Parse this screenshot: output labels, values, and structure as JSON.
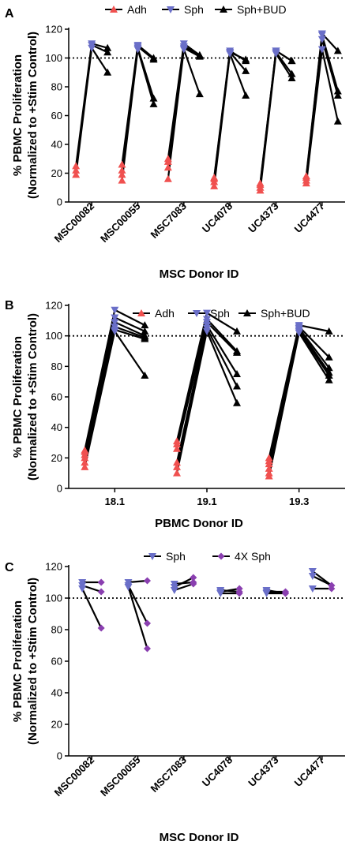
{
  "chart_data": [
    {
      "panel": "A",
      "type": "line",
      "xlabel": "MSC Donor ID",
      "ylabel_line1": "% PBMC Proliferation",
      "ylabel_line2": "(Normalized to +Stim Control)",
      "ylim": [
        0,
        120
      ],
      "yticks": [
        0,
        20,
        40,
        60,
        80,
        100,
        120
      ],
      "reference_line": 100,
      "categories": [
        "MSC00082",
        "MSC00055",
        "MSC7083",
        "UC4078",
        "UC4373",
        "UC4477"
      ],
      "series_order": [
        "Adh",
        "Sph",
        "Sph+BUD"
      ],
      "legend": [
        {
          "name": "Adh",
          "color": "#f0504f",
          "marker": "triangle-up"
        },
        {
          "name": "Sph",
          "color": "#6a6fc8",
          "marker": "triangle-down"
        },
        {
          "name": "Sph+BUD",
          "color": "#000000",
          "marker": "triangle-up"
        }
      ],
      "replicates": [
        [
          [
            19,
            107,
            90
          ],
          [
            22,
            109,
            104
          ],
          [
            25,
            110,
            107
          ]
        ],
        [
          [
            15,
            106,
            68
          ],
          [
            19,
            107,
            72
          ],
          [
            22,
            108,
            99
          ],
          [
            26,
            109,
            100
          ]
        ],
        [
          [
            16,
            106,
            75
          ],
          [
            24,
            107,
            101
          ],
          [
            28,
            108,
            102
          ],
          [
            30,
            110,
            102
          ]
        ],
        [
          [
            11,
            103,
            74
          ],
          [
            14,
            104,
            91
          ],
          [
            17,
            105,
            98
          ],
          [
            16,
            104,
            99
          ]
        ],
        [
          [
            8,
            103,
            86
          ],
          [
            10,
            104,
            89
          ],
          [
            12,
            105,
            98
          ],
          [
            13,
            105,
            98
          ]
        ],
        [
          [
            13,
            106,
            56
          ],
          [
            15,
            113,
            74
          ],
          [
            17,
            116,
            77
          ],
          [
            18,
            117,
            105
          ]
        ]
      ]
    },
    {
      "panel": "B",
      "type": "line",
      "xlabel": "PBMC Donor ID",
      "ylabel_line1": "% PBMC Proliferation",
      "ylabel_line2": "(Normalized to +Stim Control)",
      "ylim": [
        0,
        120
      ],
      "yticks": [
        0,
        20,
        40,
        60,
        80,
        100,
        120
      ],
      "reference_line": 100,
      "categories": [
        "18.1",
        "19.1",
        "19.3"
      ],
      "series_order": [
        "Adh",
        "Sph",
        "Sph+BUD"
      ],
      "legend": [
        {
          "name": "Adh",
          "color": "#f0504f",
          "marker": "triangle-up"
        },
        {
          "name": "Sph",
          "color": "#6a6fc8",
          "marker": "triangle-down"
        },
        {
          "name": "Sph+BUD",
          "color": "#000000",
          "marker": "triangle-up"
        }
      ],
      "replicates": [
        [
          [
            14,
            103,
            74
          ],
          [
            17,
            104,
            98
          ],
          [
            20,
            106,
            99
          ],
          [
            22,
            109,
            100
          ],
          [
            24,
            112,
            103
          ],
          [
            25,
            117,
            107
          ]
        ],
        [
          [
            10,
            103,
            56
          ],
          [
            14,
            105,
            67
          ],
          [
            17,
            107,
            75
          ],
          [
            26,
            109,
            89
          ],
          [
            29,
            111,
            90
          ],
          [
            31,
            115,
            103
          ]
        ],
        [
          [
            8,
            102,
            71
          ],
          [
            10,
            103,
            74
          ],
          [
            13,
            104,
            76
          ],
          [
            16,
            105,
            79
          ],
          [
            18,
            106,
            86
          ],
          [
            20,
            107,
            103
          ]
        ]
      ]
    },
    {
      "panel": "C",
      "type": "line",
      "xlabel": "MSC Donor ID",
      "ylabel_line1": "% PBMC Proliferation",
      "ylabel_line2": "(Normalized to +Stim Control)",
      "ylim": [
        0,
        120
      ],
      "yticks": [
        0,
        20,
        40,
        60,
        80,
        100,
        120
      ],
      "reference_line": 100,
      "categories": [
        "MSC00082",
        "MSC00055",
        "MSC7083",
        "UC4078",
        "UC4373",
        "UC4477"
      ],
      "series_order": [
        "Sph",
        "4X Sph"
      ],
      "legend": [
        {
          "name": "Sph",
          "color": "#6a6fc8",
          "marker": "triangle-down"
        },
        {
          "name": "4X Sph",
          "color": "#8a3fb0",
          "marker": "diamond"
        }
      ],
      "replicates": [
        [
          [
            106,
            81
          ],
          [
            108,
            104
          ],
          [
            110,
            110
          ]
        ],
        [
          [
            107,
            68
          ],
          [
            108,
            84
          ],
          [
            110,
            111
          ]
        ],
        [
          [
            105,
            109
          ],
          [
            107,
            113
          ],
          [
            109,
            110
          ]
        ],
        [
          [
            103,
            103
          ],
          [
            104,
            106
          ],
          [
            105,
            104
          ]
        ],
        [
          [
            103,
            103
          ],
          [
            104,
            104
          ],
          [
            105,
            103
          ]
        ],
        [
          [
            106,
            106
          ],
          [
            114,
            108
          ],
          [
            117,
            108
          ]
        ]
      ]
    }
  ]
}
